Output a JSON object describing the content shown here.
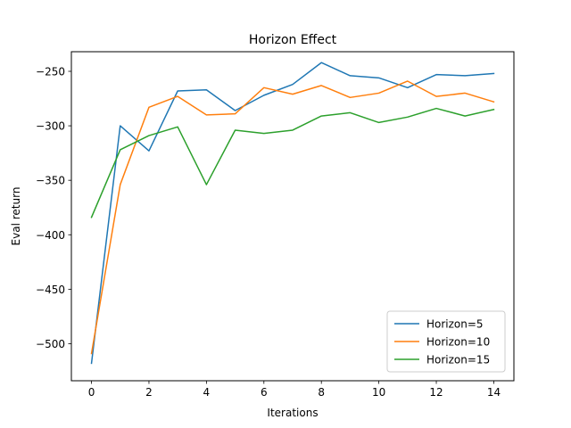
{
  "chart_data": {
    "type": "line",
    "title": "Horizon Effect",
    "xlabel": "Iterations",
    "ylabel": "Eval return",
    "xlim": [
      -0.7,
      14.7
    ],
    "ylim": [
      -534,
      -232
    ],
    "xticks": [
      0,
      2,
      4,
      6,
      8,
      10,
      12,
      14
    ],
    "yticks": [
      -500,
      -450,
      -400,
      -350,
      -300,
      -250
    ],
    "xtick_labels": [
      "0",
      "2",
      "4",
      "6",
      "8",
      "10",
      "12",
      "14"
    ],
    "ytick_labels": [
      "−500",
      "−450",
      "−400",
      "−350",
      "−300",
      "−250"
    ],
    "grid": false,
    "legend_position": "lower-right",
    "x": [
      0,
      1,
      2,
      3,
      4,
      5,
      6,
      7,
      8,
      9,
      10,
      11,
      12,
      13,
      14
    ],
    "series": [
      {
        "name": "Horizon=5",
        "color": "#1f77b4",
        "values": [
          -518,
          -300,
          -323,
          -268,
          -267,
          -286,
          -272,
          -262,
          -242,
          -254,
          -256,
          -265,
          -253,
          -254,
          -252
        ]
      },
      {
        "name": "Horizon=10",
        "color": "#ff7f0e",
        "values": [
          -509,
          -354,
          -283,
          -273,
          -290,
          -289,
          -265,
          -271,
          -263,
          -274,
          -270,
          -259,
          -273,
          -270,
          -278
        ]
      },
      {
        "name": "Horizon=15",
        "color": "#2ca02c",
        "values": [
          -384,
          -322,
          -309,
          -301,
          -354,
          -304,
          -307,
          -304,
          -291,
          -288,
          -297,
          -292,
          -284,
          -291,
          -285
        ]
      }
    ]
  }
}
